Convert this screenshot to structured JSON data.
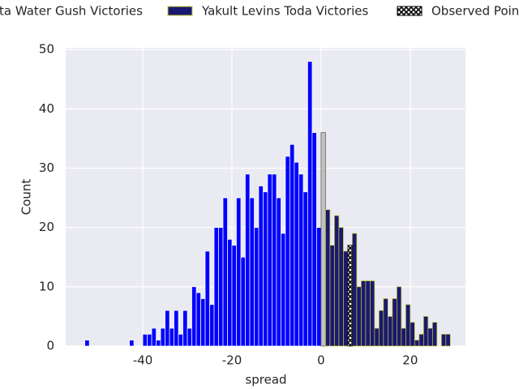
{
  "chart_data": {
    "type": "histogram",
    "xlabel": "spread",
    "ylabel": "Count",
    "xlim": [
      -57.3,
      32.4
    ],
    "ylim": [
      0,
      50.3
    ],
    "xticks": [
      -40,
      -20,
      0,
      20
    ],
    "yticks": [
      0,
      10,
      20,
      30,
      40,
      50
    ],
    "grid": true,
    "legend": "top",
    "series": [
      {
        "name": "ta Water Gush Victories",
        "color": "#0000ff",
        "edgecolor": "#ffffff",
        "bins": [
          -53,
          -52,
          -51,
          -50,
          -49,
          -48,
          -47,
          -46,
          -45,
          -44,
          -43,
          -42,
          -41,
          -40,
          -39,
          -38,
          -37,
          -36,
          -35,
          -34,
          -33,
          -32,
          -31,
          -30,
          -29,
          -28,
          -27,
          -26,
          -25,
          -24,
          -23,
          -22,
          -21,
          -20,
          -19,
          -18,
          -17,
          -16,
          -15,
          -14,
          -13,
          -12,
          -11,
          -10,
          -9,
          -8,
          -7,
          -6,
          -5,
          -4,
          -3,
          -2,
          -1,
          0
        ],
        "values": [
          1,
          0,
          0,
          0,
          0,
          0,
          0,
          0,
          0,
          0,
          1,
          0,
          0,
          2,
          2,
          3,
          1,
          3,
          6,
          3,
          6,
          2,
          6,
          3,
          10,
          9,
          8,
          16,
          7,
          20,
          20,
          25,
          18,
          17,
          25,
          15,
          29,
          25,
          20,
          27,
          26,
          29,
          29,
          25,
          19,
          32,
          34,
          31,
          29,
          26,
          48,
          36,
          20
        ]
      },
      {
        "color": "#c0c0c0",
        "edgecolor": "#555555",
        "bins": [
          0,
          1
        ],
        "values": [
          36
        ]
      },
      {
        "name": "Yakult Levins Toda Victories",
        "color": "#191970",
        "edgecolor": "#cccc33",
        "bins": [
          1,
          2,
          3,
          4,
          5,
          6,
          7,
          8,
          9,
          10,
          11,
          12,
          13,
          14,
          15,
          16,
          17,
          18,
          19,
          20,
          21,
          22,
          23,
          24,
          25,
          26,
          27,
          28,
          29
        ],
        "values": [
          23,
          17,
          22,
          20,
          16,
          17,
          19,
          10,
          11,
          11,
          11,
          3,
          6,
          8,
          5,
          8,
          10,
          3,
          7,
          4,
          1,
          2,
          5,
          3,
          4,
          0,
          2,
          2
        ]
      },
      {
        "name": "Observed Point",
        "color": "#000000",
        "edgecolor": "#000000",
        "hatch": true,
        "bins": [
          6,
          7
        ],
        "values": [
          17
        ]
      }
    ]
  }
}
